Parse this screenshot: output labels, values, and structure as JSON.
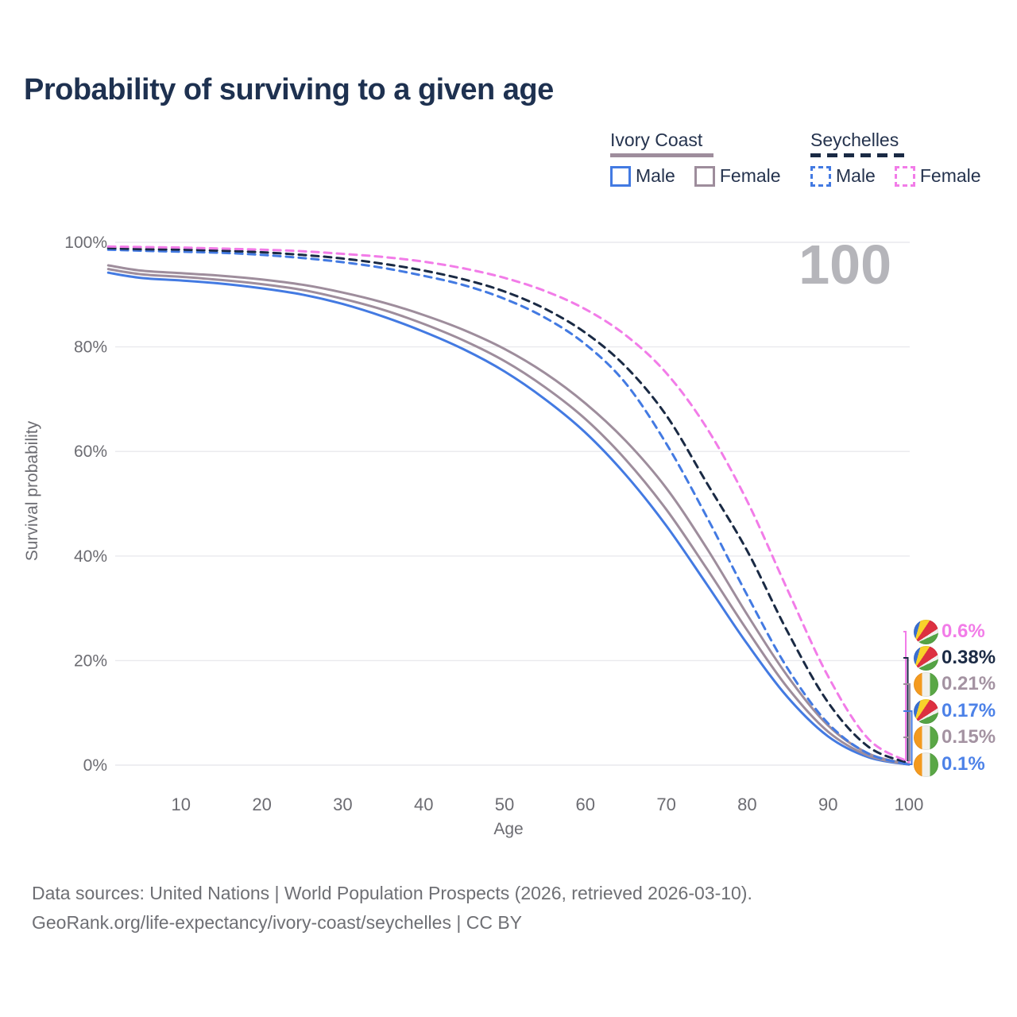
{
  "title": "Probability of surviving to a given age",
  "watermark_age": "100",
  "legend": {
    "groups": [
      {
        "label": "Ivory Coast",
        "line_style": "solid",
        "header_line_color": "#9e8d9c",
        "items": [
          {
            "label": "Male",
            "color": "#437ae2",
            "dashed": false
          },
          {
            "label": "Female",
            "color": "#9e8d9c",
            "dashed": false
          }
        ]
      },
      {
        "label": "Seychelles",
        "line_style": "dashed",
        "header_line_color": "#1a2a44",
        "items": [
          {
            "label": "Male",
            "color": "#437ae2",
            "dashed": true
          },
          {
            "label": "Female",
            "color": "#f27ce8",
            "dashed": true
          }
        ]
      }
    ]
  },
  "chart_data": {
    "type": "line",
    "title": "Probability of surviving to a given age",
    "xlabel": "Age",
    "ylabel": "Survival probability",
    "xlim": [
      0,
      100
    ],
    "ylim": [
      0,
      100
    ],
    "grid": true,
    "x_ticks": [
      10,
      20,
      30,
      40,
      50,
      60,
      70,
      80,
      90,
      100
    ],
    "y_ticks": [
      0,
      20,
      40,
      60,
      80,
      100
    ],
    "y_tick_suffix": "%",
    "hovered_age": "100",
    "ages": [
      1,
      5,
      10,
      15,
      20,
      25,
      30,
      35,
      40,
      45,
      50,
      55,
      60,
      65,
      70,
      75,
      80,
      85,
      90,
      95,
      100
    ],
    "series": [
      {
        "name": "Ivory Coast Male",
        "country": "Ivory Coast",
        "sex": "Male",
        "color": "#437ae2",
        "dashed": false,
        "values": [
          94.2,
          93.2,
          92.7,
          92.1,
          91.2,
          90.0,
          88.2,
          85.8,
          82.9,
          79.5,
          75.3,
          70.0,
          63.6,
          55.5,
          45.8,
          34.6,
          23.2,
          13.0,
          5.5,
          1.5,
          0.1
        ]
      },
      {
        "name": "Ivory Coast Both sexes",
        "country": "Ivory Coast",
        "sex": "Both sexes",
        "color": "#9e8d9c",
        "dashed": false,
        "values": [
          94.9,
          93.9,
          93.4,
          92.8,
          92.0,
          90.9,
          89.2,
          87.1,
          84.4,
          81.2,
          77.3,
          72.3,
          66.2,
          58.4,
          48.9,
          37.6,
          25.8,
          14.8,
          6.4,
          1.8,
          0.15
        ]
      },
      {
        "name": "Ivory Coast Female",
        "country": "Ivory Coast",
        "sex": "Female",
        "color": "#9e8d9c",
        "dashed": false,
        "values": [
          95.6,
          94.6,
          94.1,
          93.6,
          92.9,
          91.9,
          90.4,
          88.5,
          86.1,
          83.2,
          79.6,
          75.0,
          69.2,
          62.0,
          53.0,
          41.5,
          28.8,
          17.0,
          7.6,
          2.2,
          0.21
        ]
      },
      {
        "name": "Seychelles Male",
        "country": "Seychelles",
        "sex": "Male",
        "color": "#437ae2",
        "dashed": true,
        "values": [
          98.6,
          98.4,
          98.2,
          98.0,
          97.6,
          97.0,
          96.2,
          95.1,
          93.6,
          91.8,
          89.2,
          85.6,
          80.5,
          73.0,
          61.5,
          47.5,
          32.5,
          18.5,
          8.0,
          2.2,
          0.17
        ]
      },
      {
        "name": "Seychelles Both sexes",
        "country": "Seychelles",
        "sex": "Both sexes",
        "color": "#1a2a44",
        "dashed": true,
        "values": [
          98.9,
          98.7,
          98.6,
          98.4,
          98.1,
          97.6,
          96.9,
          95.9,
          94.6,
          92.9,
          90.6,
          87.3,
          82.7,
          76.2,
          66.9,
          54.0,
          41.0,
          25.5,
          12.0,
          3.5,
          0.38
        ]
      },
      {
        "name": "Seychelles Female",
        "country": "Seychelles",
        "sex": "Female",
        "color": "#f27ce8",
        "dashed": true,
        "values": [
          99.2,
          99.1,
          99.0,
          98.8,
          98.6,
          98.3,
          97.8,
          97.2,
          96.3,
          95.0,
          93.2,
          90.7,
          87.2,
          82.2,
          75.0,
          64.5,
          50.5,
          33.5,
          17.0,
          5.0,
          0.6
        ]
      }
    ],
    "end_labels": [
      {
        "value": "0.6%",
        "text_color": "#f27ce8",
        "line_color": "#f27ce8",
        "flag": "seychelles",
        "series": "Seychelles Female"
      },
      {
        "value": "0.38%",
        "text_color": "#1c2b45",
        "line_color": "#1a2a44",
        "flag": "seychelles",
        "series": "Seychelles Both sexes"
      },
      {
        "value": "0.21%",
        "text_color": "#a493a2",
        "line_color": "#9e8d9c",
        "flag": "ivory-coast",
        "series": "Ivory Coast Female"
      },
      {
        "value": "0.17%",
        "text_color": "#4d82e8",
        "line_color": "#437ae2",
        "flag": "seychelles",
        "series": "Seychelles Male"
      },
      {
        "value": "0.15%",
        "text_color": "#a493a2",
        "line_color": "#9e8d9c",
        "flag": "ivory-coast",
        "series": "Ivory Coast Both sexes"
      },
      {
        "value": "0.1%",
        "text_color": "#4d82e8",
        "line_color": "#437ae2",
        "flag": "ivory-coast",
        "series": "Ivory Coast Male"
      }
    ],
    "colors": {
      "grid": "#e9e9ed",
      "tick_text": "#6c6c72",
      "axis_title": "#6c6c72",
      "watermark": "#b5b5ba"
    }
  },
  "footer": {
    "line1": "Data sources: United Nations | World Population Prospects (2026, retrieved 2026-03-10).",
    "line2": "GeoRank.org/life-expectancy/ivory-coast/seychelles | CC BY"
  }
}
